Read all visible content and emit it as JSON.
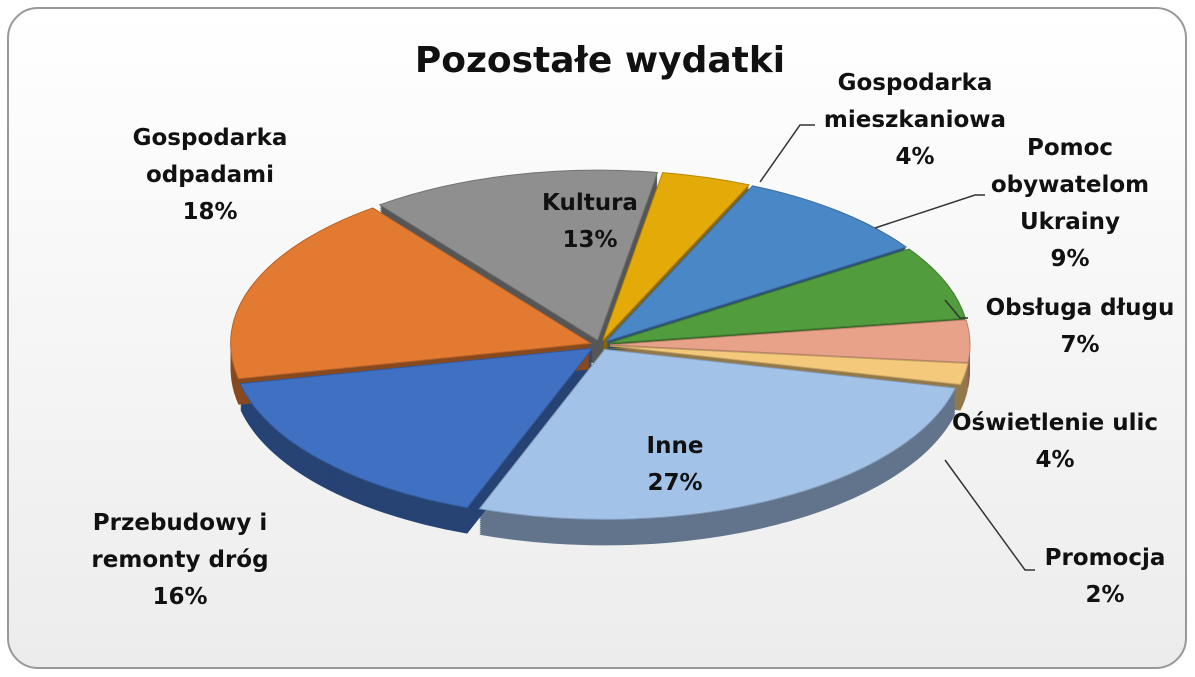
{
  "chart_data": {
    "type": "pie",
    "title": "Pozostałe wydatki",
    "categories": [
      "Kultura",
      "Gospodarka mieszkaniowa",
      "Pomoc obywatelom Ukrainy",
      "Obsługa długu",
      "Oświetlenie ulic",
      "Promocja",
      "Inne",
      "Przebudowy i remonty dróg",
      "Gospodarka odpadami"
    ],
    "values": [
      13,
      4,
      9,
      7,
      4,
      2,
      27,
      16,
      18
    ],
    "value_labels": [
      "13%",
      "4%",
      "9%",
      "7%",
      "4%",
      "2%",
      "27%",
      "16%",
      "18%"
    ],
    "colors": [
      "#8f8f8f",
      "#e3aa08",
      "#4a87c6",
      "#519c3c",
      "#e9a28a",
      "#f4c97c",
      "#a3c2e8",
      "#4070c2",
      "#e27a32"
    ]
  }
}
